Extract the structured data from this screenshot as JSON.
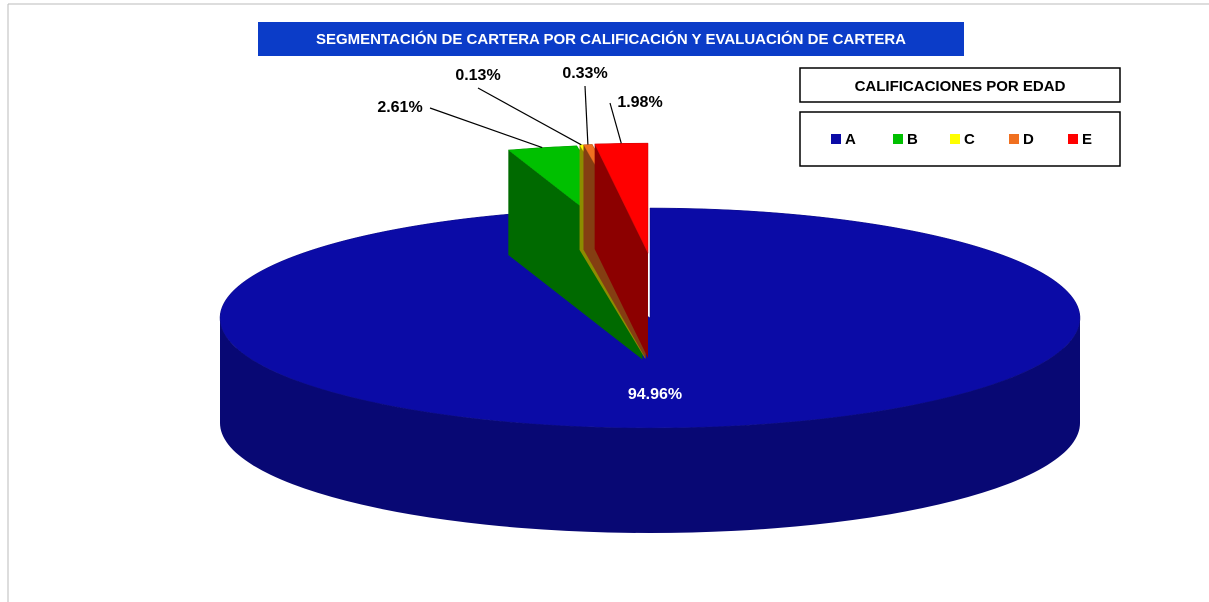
{
  "chart_data": {
    "type": "pie3d",
    "title": "SEGMENTACIÓN DE CARTERA POR CALIFICACIÓN Y EVALUACIÓN DE CARTERA",
    "legend_title": "CALIFICACIONES POR EDAD",
    "categories": [
      "A",
      "B",
      "C",
      "D",
      "E"
    ],
    "values": [
      94.96,
      2.61,
      0.13,
      0.33,
      1.98
    ],
    "value_labels": [
      "94.96%",
      "2.61%",
      "0.13%",
      "0.33%",
      "1.98%"
    ],
    "colors": [
      "#0b0ba6",
      "#00c000",
      "#ffff00",
      "#f07020",
      "#ff0000"
    ],
    "legend": "top-right"
  }
}
